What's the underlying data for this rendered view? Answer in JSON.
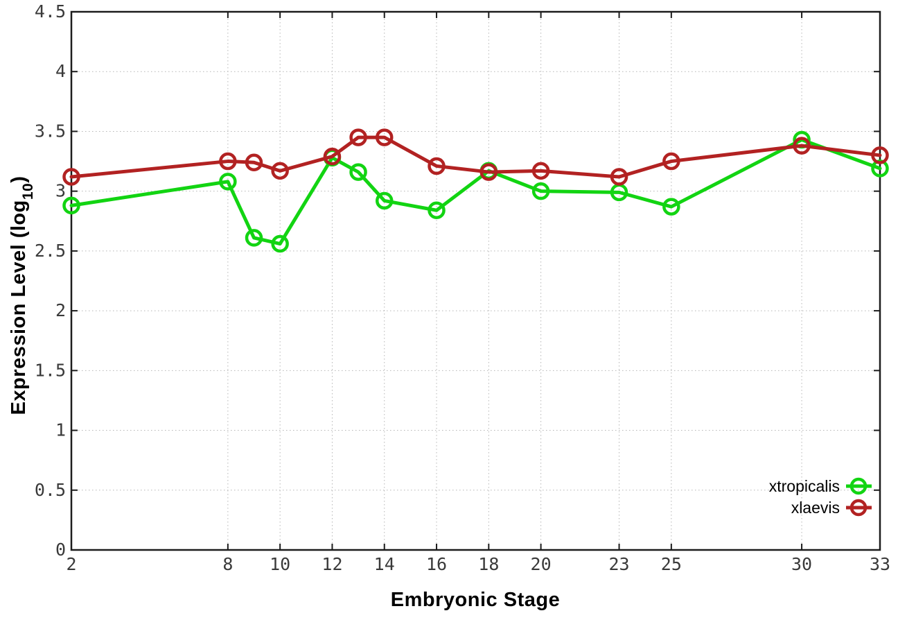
{
  "figure": {
    "xlabel": "Embryonic Stage",
    "ylabel_prefix": "Expression Level (log",
    "ylabel_sub": "10",
    "ylabel_suffix": ")"
  },
  "chart_data": {
    "type": "line",
    "title": "",
    "xlabel": "Embryonic Stage",
    "ylabel": "Expression Level (log10)",
    "xlim": [
      2,
      33
    ],
    "ylim": [
      0,
      4.5
    ],
    "grid": true,
    "marker": "open-circle",
    "legend_position": "inside-bottom-right",
    "x": [
      2,
      8,
      9,
      10,
      12,
      13,
      14,
      16,
      18,
      20,
      23,
      25,
      30,
      33
    ],
    "series": [
      {
        "name": "xtropicalis",
        "color": "#12d412",
        "values": [
          2.88,
          3.08,
          2.61,
          2.56,
          3.28,
          3.16,
          2.92,
          2.84,
          3.17,
          3.0,
          2.99,
          2.87,
          3.43,
          3.19
        ]
      },
      {
        "name": "xlaevis",
        "color": "#b22222",
        "values": [
          3.12,
          3.25,
          3.24,
          3.17,
          3.29,
          3.45,
          3.45,
          3.21,
          3.16,
          3.17,
          3.12,
          3.25,
          3.38,
          3.3
        ]
      }
    ],
    "xticks": {
      "values": [
        2,
        8,
        10,
        12,
        14,
        16,
        18,
        20,
        23,
        25,
        30,
        33
      ],
      "labels": [
        "2",
        "8",
        "10",
        "12",
        "14",
        "16",
        "18",
        "20",
        "23",
        "25",
        "30",
        "33"
      ]
    },
    "yticks": {
      "values": [
        0,
        0.5,
        1,
        1.5,
        2,
        2.5,
        3,
        3.5,
        4,
        4.5
      ],
      "labels": [
        "0",
        "0.5",
        "1",
        "1.5",
        "2",
        "2.5",
        "3",
        "3.5",
        "4",
        "4.5"
      ]
    }
  },
  "style": {
    "background": "#ffffff",
    "border_color": "#1c1c1c",
    "grid_color": "#b5b5b5",
    "tick_label_color": "#3a3a3a",
    "axis_title_color": "#000000"
  }
}
